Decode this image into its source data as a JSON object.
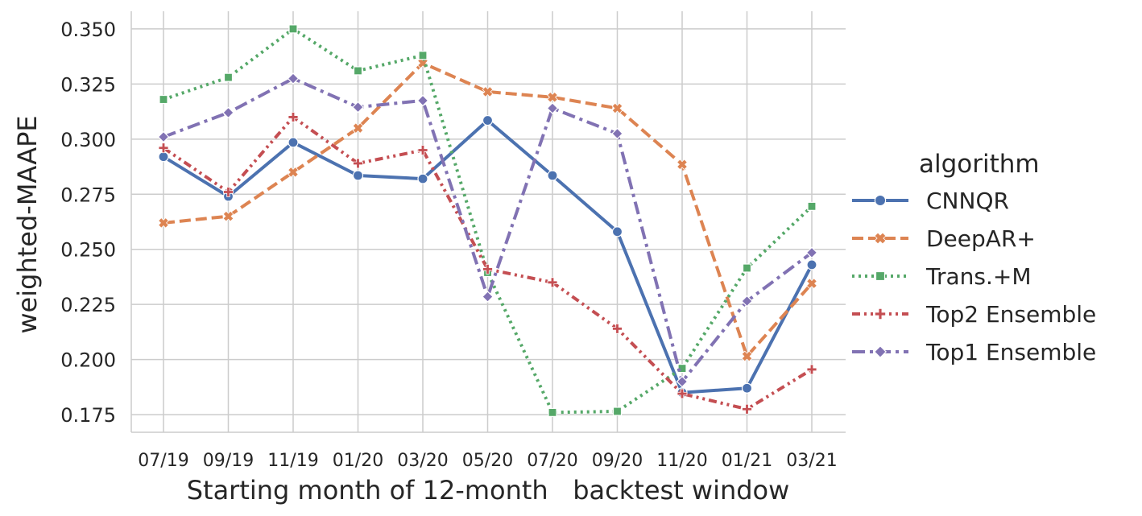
{
  "chart_data": {
    "type": "line",
    "xlabel": "Starting month of 12-month   backtest window",
    "ylabel": "weighted-MAAPE",
    "categories": [
      "07/19",
      "09/19",
      "11/19",
      "01/20",
      "03/20",
      "05/20",
      "07/20",
      "09/20",
      "11/20",
      "01/21",
      "03/21"
    ],
    "ylim": [
      0.167,
      0.358
    ],
    "yticks": [
      "0.175",
      "0.200",
      "0.225",
      "0.250",
      "0.275",
      "0.300",
      "0.325",
      "0.350"
    ],
    "grid": true,
    "legend": {
      "title": "algorithm",
      "placement": "right"
    },
    "series": [
      {
        "name": "CNNQR",
        "color": "#4c72b0",
        "dash": "solid",
        "marker": "circle",
        "values": [
          0.292,
          0.274,
          0.2985,
          0.2835,
          0.282,
          0.3085,
          0.2835,
          0.258,
          0.185,
          0.187,
          0.243
        ]
      },
      {
        "name": "DeepAR+",
        "color": "#dd8452",
        "dash": "dashed",
        "marker": "x",
        "values": [
          0.262,
          0.265,
          0.285,
          0.305,
          0.3345,
          0.3215,
          0.319,
          0.314,
          0.2885,
          0.2015,
          0.2345
        ]
      },
      {
        "name": "Trans.+M",
        "color": "#55a868",
        "dash": "dotted",
        "marker": "square",
        "values": [
          0.318,
          0.328,
          0.35,
          0.331,
          0.338,
          0.2395,
          0.176,
          0.1765,
          0.196,
          0.2415,
          0.2695
        ]
      },
      {
        "name": "Top2 Ensemble",
        "color": "#c44e52",
        "dash": "dashdotdot",
        "marker": "plus",
        "values": [
          0.296,
          0.276,
          0.31,
          0.289,
          0.295,
          0.241,
          0.235,
          0.214,
          0.1845,
          0.1775,
          0.1955
        ]
      },
      {
        "name": "Top1 Ensemble",
        "color": "#8172b3",
        "dash": "dashdot",
        "marker": "diamond",
        "values": [
          0.301,
          0.312,
          0.3275,
          0.3145,
          0.3175,
          0.2285,
          0.314,
          0.3025,
          0.19,
          0.2265,
          0.2485
        ]
      }
    ]
  }
}
